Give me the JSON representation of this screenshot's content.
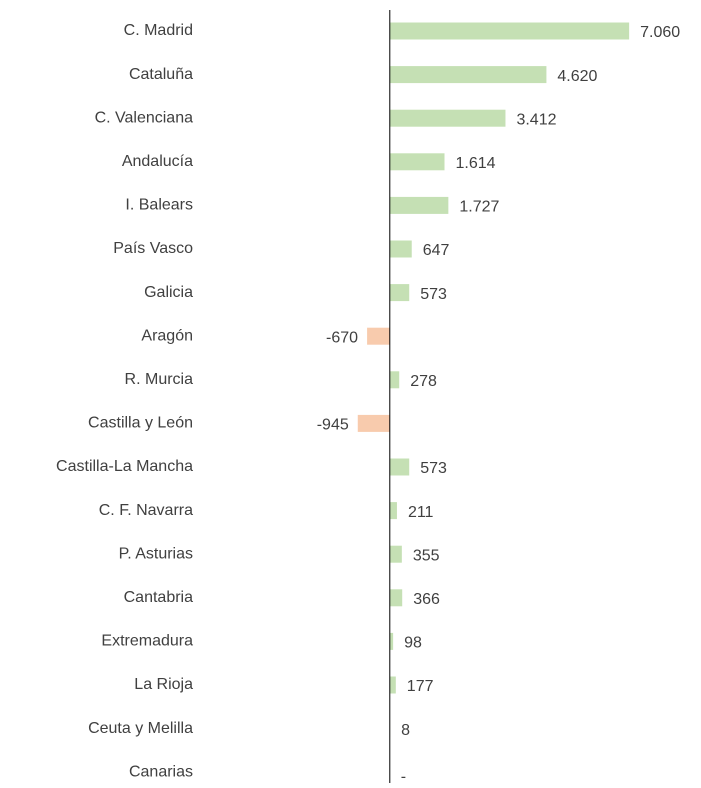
{
  "chart_data": {
    "type": "hbar",
    "categories": [
      "C. Madrid",
      "Cataluña",
      "C. Valenciana",
      "Andalucía",
      "I. Balears",
      "País Vasco",
      "Galicia",
      "Aragón",
      "R. Murcia",
      "Castilla y León",
      "Castilla-La Mancha",
      "C. F. Navarra",
      "P. Asturias",
      "Cantabria",
      "Extremadura",
      "La Rioja",
      "Ceuta y Melilla",
      "Canarias"
    ],
    "values": [
      7060,
      4620,
      3412,
      1614,
      1727,
      647,
      573,
      -670,
      278,
      -945,
      573,
      211,
      355,
      366,
      98,
      177,
      8,
      0
    ],
    "value_labels": [
      "7.060",
      "4.620",
      "3.412",
      "1.614",
      "1.727",
      "647",
      "573",
      "-670",
      "278",
      "-945",
      "573",
      "211",
      "355",
      "366",
      "98",
      "177",
      "8",
      "-"
    ],
    "xlim": [
      -2000,
      8000
    ],
    "positive_color": "#c5e0b4",
    "negative_color": "#f8cbad"
  }
}
